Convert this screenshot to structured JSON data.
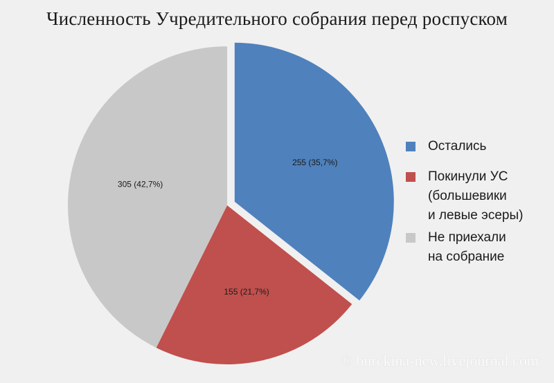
{
  "chart_data": {
    "type": "pie",
    "title": "Численность Учредительного собрания перед роспуском",
    "slices": [
      {
        "name": "Остались",
        "value": 255,
        "percent": 35.7,
        "label": "255 (35,7%)",
        "color": "#4f81bd",
        "exploded": true
      },
      {
        "name": "Покинули УС (большевики и левые эсеры)",
        "value": 155,
        "percent": 21.7,
        "label": "155 (21,7%)",
        "color": "#c0504d",
        "exploded": false
      },
      {
        "name": "Не приехали на собрание",
        "value": 305,
        "percent": 42.7,
        "label": "305 (42,7%)",
        "color": "#c8c8c8",
        "exploded": false
      }
    ],
    "legend_position": "right"
  },
  "legend": [
    {
      "text": "Остались"
    },
    {
      "text": "Покинули УС\n(большевики\nи левые эсеры)"
    },
    {
      "text": "Не приехали\nна собрание"
    }
  ],
  "watermark": "© burckina-new.livejournal.com"
}
